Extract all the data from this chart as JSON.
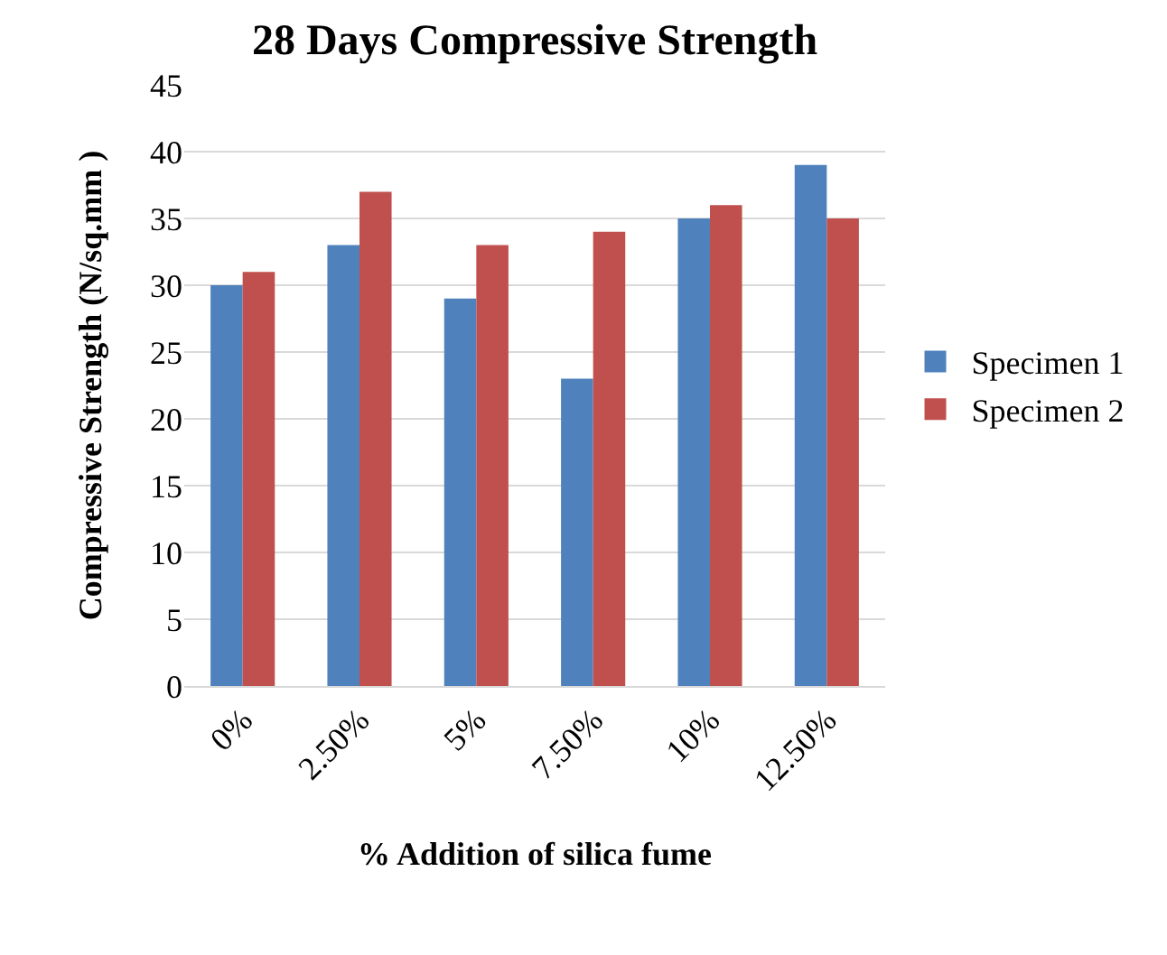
{
  "chart_data": {
    "type": "bar",
    "title": "28 Days Compressive Strength",
    "xlabel": "% Addition of silica fume",
    "ylabel": "Compressive Strength (N/sq.mm )",
    "categories": [
      "0%",
      "2.50%",
      "5%",
      "7.50%",
      "10%",
      "12.50%"
    ],
    "series": [
      {
        "name": "Specimen 1",
        "color": "#4f81bd",
        "values": [
          30,
          33,
          29,
          23,
          35,
          39
        ]
      },
      {
        "name": "Specimen 2",
        "color": "#c0504d",
        "values": [
          31,
          37,
          33,
          34,
          36,
          35
        ]
      }
    ],
    "ylim": [
      0,
      45
    ],
    "yticks": [
      0,
      5,
      10,
      15,
      20,
      25,
      30,
      35,
      40,
      45
    ],
    "grid": "y",
    "legend": "right"
  }
}
